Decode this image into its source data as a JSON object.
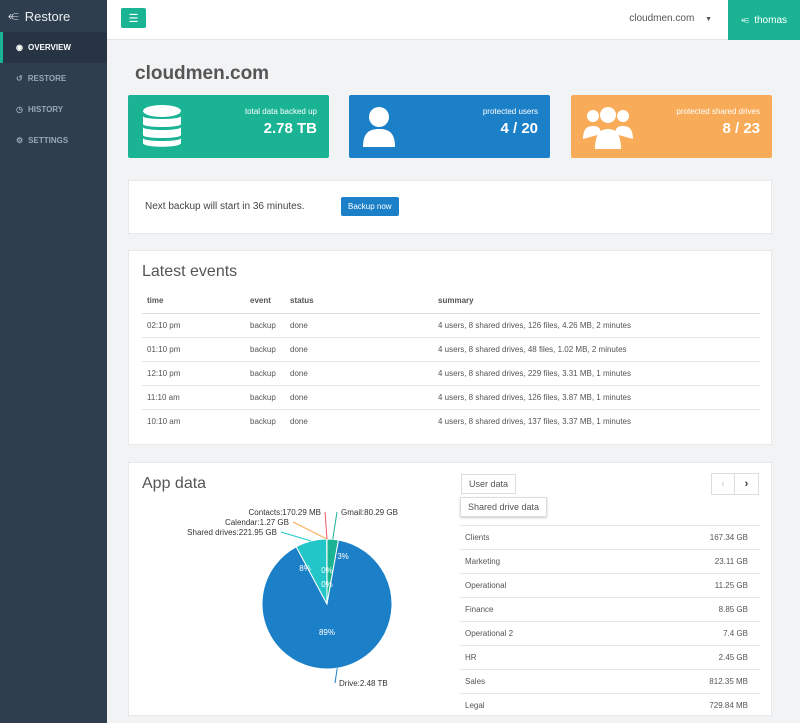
{
  "sidebar": {
    "brand": "Restore",
    "items": [
      {
        "label": "OVERVIEW",
        "icon": "dashboard-icon"
      },
      {
        "label": "RESTORE",
        "icon": "undo-icon"
      },
      {
        "label": "HISTORY",
        "icon": "clock-icon"
      },
      {
        "label": "SETTINGS",
        "icon": "gear-icon"
      }
    ]
  },
  "header": {
    "domain": "cloudmen.com",
    "user": "thomas"
  },
  "page_title": "cloudmen.com",
  "cards": [
    {
      "label": "total data backed up",
      "value": "2.78 TB",
      "color": "#1ab394"
    },
    {
      "label": "protected users",
      "value": "4 / 20",
      "color": "#1c80c8"
    },
    {
      "label": "protected shared drives",
      "value": "8 / 23",
      "color": "#f8ac59"
    }
  ],
  "backup": {
    "text": "Next backup will start in 36 minutes.",
    "button": "Backup now"
  },
  "events": {
    "title": "Latest events",
    "columns": [
      "time",
      "event",
      "status",
      "summary"
    ],
    "rows": [
      [
        "02:10 pm",
        "backup",
        "done",
        "4 users, 8 shared drives, 126 files, 4.26 MB, 2 minutes"
      ],
      [
        "01:10 pm",
        "backup",
        "done",
        "4 users, 8 shared drives, 48 files, 1.02 MB, 2 minutes"
      ],
      [
        "12:10 pm",
        "backup",
        "done",
        "4 users, 8 shared drives, 229 files, 3.31 MB, 1 minutes"
      ],
      [
        "11:10 am",
        "backup",
        "done",
        "4 users, 8 shared drives, 126 files, 3.87 MB, 1 minutes"
      ],
      [
        "10:10 am",
        "backup",
        "done",
        "4 users, 8 shared drives, 137 files, 3.37 MB, 1 minutes"
      ]
    ]
  },
  "app_data": {
    "title": "App data",
    "tabs": [
      "User data",
      "Shared drive data"
    ],
    "rows": [
      [
        "Clients",
        "167.34 GB"
      ],
      [
        "Marketing",
        "23.11 GB"
      ],
      [
        "Operational",
        "11.25 GB"
      ],
      [
        "Finance",
        "8.85 GB"
      ],
      [
        "Operational 2",
        "7.4 GB"
      ],
      [
        "HR",
        "2.45 GB"
      ],
      [
        "Sales",
        "812.35 MB"
      ],
      [
        "Legal",
        "729.84 MB"
      ]
    ]
  },
  "chart_data": {
    "type": "pie",
    "slices": [
      {
        "label": "Gmail:80.29 GB",
        "value": 80.29,
        "pct": "3%",
        "color": "#1ab394"
      },
      {
        "label": "Drive:2.48 TB",
        "value": 2539.5,
        "pct": "89%",
        "color": "#1c80c8"
      },
      {
        "label": "Shared drives:221.95 GB",
        "value": 221.95,
        "pct": "8%",
        "color": "#23c6c8"
      },
      {
        "label": "Calendar:1.27 GB",
        "value": 1.27,
        "pct": "0%",
        "color": "#f8ac59"
      },
      {
        "label": "Contacts:170.29 MB",
        "value": 0.17,
        "pct": "0%",
        "color": "#ed5565"
      }
    ]
  }
}
